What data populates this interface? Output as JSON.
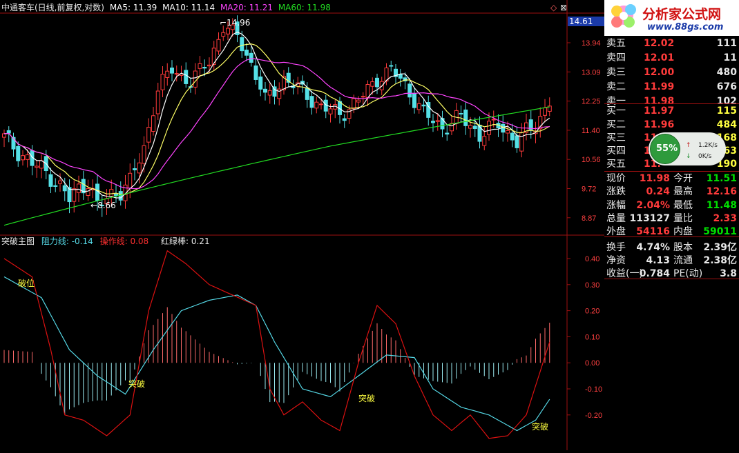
{
  "top_legend": {
    "title": "中通客车(日线,前复权,对数)",
    "ma5": "MA5: 11.39",
    "ma10": "MA10: 11.14",
    "ma20": "MA20: 11.21",
    "ma60": "MA60: 11.98"
  },
  "price_axis": [
    "13.94",
    "13.09",
    "12.25",
    "11.40",
    "10.56",
    "9.72",
    "8.87"
  ],
  "price_axis_current": "14.61",
  "price_annotations": {
    "high": "14.96",
    "low": "8.66"
  },
  "indicator_legend": {
    "name": "突破主图",
    "resistance": "阻力线: -0.14",
    "operation": "操作线: 0.08",
    "bar": "红绿棒: 0.21"
  },
  "indicator_axis": [
    "0.40",
    "0.30",
    "0.20",
    "0.10",
    "0.00",
    "-0.10",
    "-0.20"
  ],
  "indicator_labels": [
    "破位",
    "突破",
    "突破",
    "突破"
  ],
  "logo": {
    "name": "分析家公式网",
    "url": "www.88gs.com"
  },
  "order_book": {
    "asks": [
      {
        "label": "卖五",
        "price": "12.02",
        "volume": "111"
      },
      {
        "label": "卖四",
        "price": "12.01",
        "volume": "11"
      },
      {
        "label": "卖三",
        "price": "12.00",
        "volume": "480"
      },
      {
        "label": "卖二",
        "price": "11.99",
        "volume": "676"
      },
      {
        "label": "卖一",
        "price": "11.98",
        "volume": "102"
      }
    ],
    "bids": [
      {
        "label": "买一",
        "price": "11.97",
        "volume": "115"
      },
      {
        "label": "买二",
        "price": "11.96",
        "volume": "484"
      },
      {
        "label": "买三",
        "price": "11.",
        "volume": "168"
      },
      {
        "label": "买四",
        "price": "1",
        "volume": "63"
      },
      {
        "label": "买五",
        "price": "11.",
        "volume": "190"
      }
    ]
  },
  "speed_widget": {
    "percent": "55%",
    "up": "1.2K/s",
    "down": "0K/s"
  },
  "stats": [
    {
      "l1": "现价",
      "v1": "11.98",
      "l2": "今开",
      "v2": "11.51"
    },
    {
      "l1": "涨跌",
      "v1": "0.24",
      "l2": "最高",
      "v2": "12.16"
    },
    {
      "l1": "涨幅",
      "v1": "2.04%",
      "l2": "最低",
      "v2": "11.48"
    },
    {
      "l1": "总量",
      "v1": "113127",
      "l2": "量比",
      "v2": "2.33"
    },
    {
      "l1": "外盘",
      "v1": "54116",
      "l2": "内盘",
      "v2": "59011"
    },
    {
      "l1": "换手",
      "v1": "4.74%",
      "l2": "股本",
      "v2": "2.39亿"
    },
    {
      "l1": "净资",
      "v1": "4.13",
      "l2": "流通",
      "v2": "2.38亿"
    },
    {
      "l1": "收益(一)",
      "v1": "0.784",
      "l2": "PE(动)",
      "v2": "3.8"
    }
  ],
  "colors": {
    "up": "#ff3b3b",
    "down": "#55e0e6",
    "ma5": "#ffffff",
    "ma10": "#ffff66",
    "ma20": "#ff44ff",
    "ma60": "#22dd22",
    "operation": "#dd1111",
    "resistance": "#55d8e6"
  }
}
